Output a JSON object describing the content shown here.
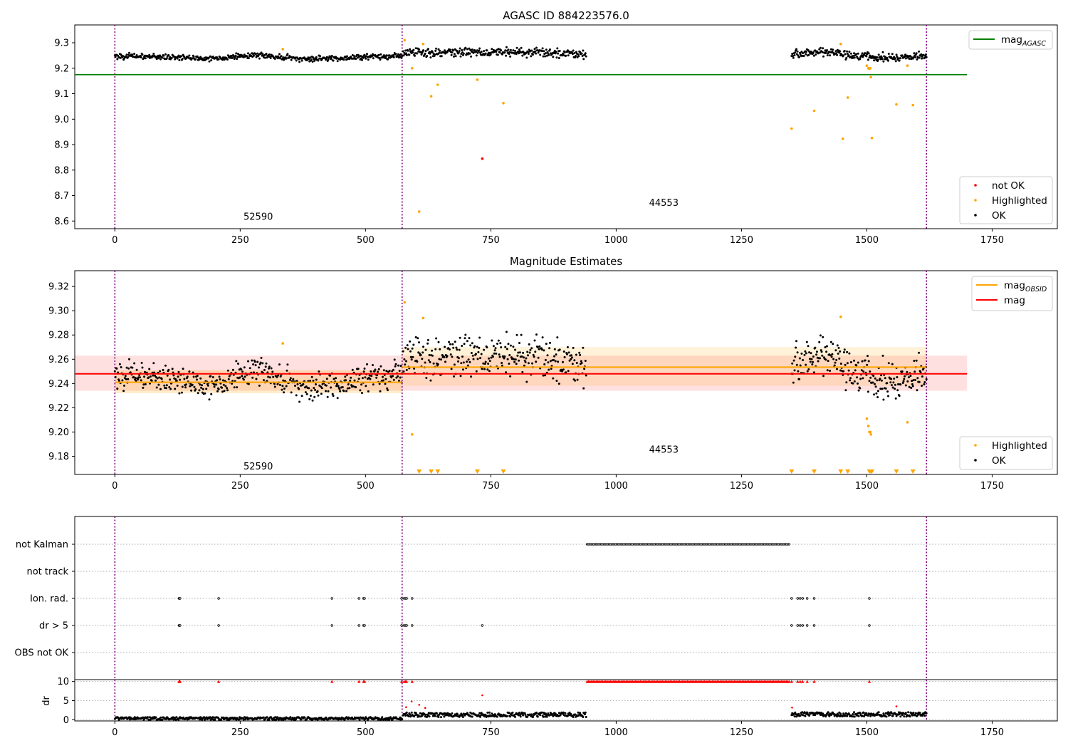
{
  "chart_data": [
    {
      "id": "agasc",
      "type": "scatter",
      "title": "AGASC ID 884223576.0",
      "xlabel": "",
      "ylabel": "",
      "xlim": [
        -80,
        1880
      ],
      "ylim": [
        8.57,
        9.37
      ],
      "xticks": [
        0,
        250,
        500,
        750,
        1000,
        1250,
        1500,
        1750
      ],
      "yticks": [
        8.6,
        8.7,
        8.8,
        8.9,
        9.0,
        9.1,
        9.2,
        9.3
      ],
      "ytick_labels": [
        "8.6",
        "8.7",
        "8.8",
        "8.9",
        "9.0",
        "9.1",
        "9.2",
        "9.3"
      ],
      "grid": false,
      "obsid_boundaries": [
        0,
        573,
        1619
      ],
      "obsid_labels": [
        {
          "text": "52590",
          "x": 286,
          "y": 8.605
        },
        {
          "text": "44553",
          "x": 1095,
          "y": 8.66
        }
      ],
      "reference_lines": [
        {
          "name": "mag_AGASC",
          "value": 9.175,
          "x": [
            -80,
            1700
          ],
          "color": "#008000"
        }
      ],
      "series": [
        {
          "name": "not OK",
          "color": "#ff0000",
          "points": [
            [
              733,
              8.845
            ]
          ]
        },
        {
          "name": "Highlighted",
          "color": "#ffa500",
          "points": [
            [
              335,
              9.275
            ],
            [
              578,
              9.31
            ],
            [
              593,
              9.2
            ],
            [
              607,
              8.637
            ],
            [
              615,
              9.295
            ],
            [
              631,
              9.09
            ],
            [
              644,
              9.135
            ],
            [
              723,
              9.155
            ],
            [
              775,
              9.063
            ],
            [
              1350,
              8.963
            ],
            [
              1395,
              9.033
            ],
            [
              1448,
              9.295
            ],
            [
              1452,
              8.923
            ],
            [
              1462,
              9.085
            ],
            [
              1500,
              9.21
            ],
            [
              1503,
              9.2
            ],
            [
              1505,
              9.198
            ],
            [
              1507,
              9.2
            ],
            [
              1508,
              9.165
            ],
            [
              1510,
              8.926
            ],
            [
              1559,
              9.058
            ],
            [
              1581,
              9.21
            ],
            [
              1592,
              9.055
            ]
          ]
        },
        {
          "name": "OK",
          "color": "#000000",
          "segments": [
            {
              "x0": 0,
              "x1": 573,
              "n": 460,
              "base": [
                9.248,
                9.245,
                9.238,
                9.252,
                9.235,
                9.243,
                9.25
              ],
              "spread": 0.016
            },
            {
              "x0": 575,
              "x1": 940,
              "n": 300,
              "base": [
                9.26,
                9.265,
                9.258
              ],
              "spread": 0.026
            },
            {
              "x0": 1350,
              "x1": 1619,
              "n": 230,
              "base": [
                9.255,
                9.265,
                9.248,
                9.24,
                9.248
              ],
              "spread": 0.024
            }
          ]
        }
      ],
      "legends": [
        {
          "position": "upper-right",
          "items": [
            {
              "name": "mag",
              "sub": "AGASC",
              "kind": "line",
              "color": "#008000"
            }
          ]
        },
        {
          "position": "lower-right",
          "items": [
            {
              "name": "not OK",
              "kind": "dot",
              "color": "#ff0000"
            },
            {
              "name": "Highlighted",
              "kind": "dot",
              "color": "#ffa500"
            },
            {
              "name": "OK",
              "kind": "dot",
              "color": "#000000"
            }
          ]
        }
      ]
    },
    {
      "id": "estimates",
      "type": "scatter",
      "title": "Magnitude Estimates",
      "xlabel": "",
      "ylabel": "",
      "xlim": [
        -80,
        1880
      ],
      "ylim": [
        9.165,
        9.333
      ],
      "xticks": [
        0,
        250,
        500,
        750,
        1000,
        1250,
        1500,
        1750
      ],
      "yticks": [
        9.18,
        9.2,
        9.22,
        9.24,
        9.26,
        9.28,
        9.3,
        9.32
      ],
      "ytick_labels": [
        "9.18",
        "9.20",
        "9.22",
        "9.24",
        "9.26",
        "9.28",
        "9.30",
        "9.32"
      ],
      "grid": false,
      "obsid_boundaries": [
        0,
        573,
        1619
      ],
      "obsid_labels": [
        {
          "text": "52590",
          "x": 286,
          "y": 9.169
        },
        {
          "text": "44553",
          "x": 1095,
          "y": 9.183
        }
      ],
      "bands": [
        {
          "x": [
            -80,
            1700
          ],
          "y": [
            9.234,
            9.263
          ],
          "color": "#ff0000",
          "opacity": 0.12
        },
        {
          "x": [
            0,
            573
          ],
          "y": [
            9.232,
            9.251
          ],
          "color": "#ffa500",
          "opacity": 0.2
        },
        {
          "x": [
            573,
            1619
          ],
          "y": [
            9.238,
            9.27
          ],
          "color": "#ffa500",
          "opacity": 0.15
        }
      ],
      "reference_lines": [
        {
          "name": "mag",
          "value": 9.248,
          "x": [
            -80,
            1700
          ],
          "color": "#ff0000"
        },
        {
          "name": "mag_OBSID",
          "value": 9.241,
          "x": [
            0,
            573
          ],
          "color": "#ffa500"
        },
        {
          "name": "mag_OBSID",
          "value": 9.2535,
          "x": [
            573,
            1619
          ],
          "color": "#ffa500"
        }
      ],
      "off_scale_markers": {
        "color": "#ffa500",
        "x": [
          607,
          631,
          644,
          723,
          775,
          1350,
          1395,
          1448,
          1462,
          1505,
          1508,
          1510,
          1559,
          1592
        ]
      },
      "series": [
        {
          "name": "Highlighted",
          "color": "#ffa500",
          "points": [
            [
              335,
              9.273
            ],
            [
              578,
              9.307
            ],
            [
              593,
              9.198
            ],
            [
              615,
              9.294
            ],
            [
              1448,
              9.295
            ],
            [
              1500,
              9.211
            ],
            [
              1503,
              9.205
            ],
            [
              1505,
              9.2
            ],
            [
              1507,
              9.2
            ],
            [
              1508,
              9.198
            ],
            [
              1581,
              9.208
            ]
          ]
        },
        {
          "name": "OK",
          "color": "#000000",
          "segments": [
            {
              "x0": 0,
              "x1": 573,
              "n": 460,
              "base": [
                9.248,
                9.245,
                9.238,
                9.252,
                9.235,
                9.243,
                9.25
              ],
              "spread": 0.016
            },
            {
              "x0": 575,
              "x1": 940,
              "n": 300,
              "base": [
                9.26,
                9.265,
                9.258
              ],
              "spread": 0.026
            },
            {
              "x0": 1350,
              "x1": 1619,
              "n": 230,
              "base": [
                9.255,
                9.265,
                9.248,
                9.24,
                9.248
              ],
              "spread": 0.024
            }
          ]
        }
      ],
      "legends": [
        {
          "position": "upper-right",
          "items": [
            {
              "name": "mag",
              "sub": "OBSID",
              "kind": "line",
              "color": "#ffa500"
            },
            {
              "name": "mag",
              "sub": "",
              "kind": "line",
              "color": "#ff0000"
            }
          ]
        },
        {
          "position": "lower-right",
          "items": [
            {
              "name": "Highlighted",
              "kind": "dot",
              "color": "#ffa500"
            },
            {
              "name": "OK",
              "kind": "dot",
              "color": "#000000"
            }
          ]
        }
      ]
    },
    {
      "id": "flags",
      "type": "scatter",
      "title": "",
      "xlabel": "",
      "ylabel": "",
      "xlim": [
        -80,
        1880
      ],
      "xticks": [],
      "categories": [
        "not Kalman",
        "not track",
        "Ion. rad.",
        "dr > 5",
        "OBS not OK"
      ],
      "grid": "y-dotted",
      "obsid_boundaries": [
        0,
        573,
        1619
      ],
      "flags": [
        {
          "category": "not Kalman",
          "ranges": [
            [
              942,
              1345
            ]
          ],
          "x": []
        },
        {
          "category": "not track",
          "ranges": [],
          "x": []
        },
        {
          "category": "Ion. rad.",
          "ranges": [],
          "x": [
            128,
            129,
            130,
            207,
            433,
            487,
            496,
            498,
            572,
            577,
            580,
            582,
            593,
            1350,
            1362,
            1367,
            1372,
            1381,
            1395,
            1505
          ]
        },
        {
          "category": "dr > 5",
          "ranges": [],
          "x": [
            128,
            129,
            130,
            207,
            433,
            487,
            496,
            498,
            572,
            577,
            580,
            582,
            593,
            733,
            1350,
            1362,
            1367,
            1372,
            1381,
            1395,
            1505
          ]
        },
        {
          "category": "OBS not OK",
          "ranges": [],
          "x": []
        }
      ]
    },
    {
      "id": "dr",
      "type": "scatter",
      "title": "",
      "xlabel": "",
      "ylabel": "dr",
      "xlim": [
        -80,
        1880
      ],
      "ylim": [
        -0.3,
        10.5
      ],
      "xticks": [
        0,
        250,
        500,
        750,
        1000,
        1250,
        1500,
        1750
      ],
      "yticks": [
        0,
        5,
        10
      ],
      "ytick_labels": [
        "0",
        "5",
        "10"
      ],
      "grid": "y-dotted",
      "obsid_boundaries": [
        0,
        573,
        1619
      ],
      "clipped": {
        "color": "#ff0000",
        "value": 10,
        "ranges": [
          [
            942,
            1345
          ]
        ],
        "x": [
          128,
          129,
          130,
          207,
          433,
          487,
          496,
          498,
          572,
          577,
          580,
          582,
          593,
          1350,
          1362,
          1367,
          1372,
          1381,
          1395,
          1505
        ]
      },
      "series": [
        {
          "name": "dr > 5",
          "color": "#ff0000",
          "points": [
            [
              581,
              3.3
            ],
            [
              592,
              4.8
            ],
            [
              607,
              3.9
            ],
            [
              619,
              3.1
            ],
            [
              733,
              6.4
            ],
            [
              1351,
              3.2
            ],
            [
              1559,
              3.5
            ]
          ]
        },
        {
          "name": "dr",
          "color": "#000000",
          "segments": [
            {
              "x0": 0,
              "x1": 573,
              "n": 420,
              "level": 0.35,
              "spread": 0.35
            },
            {
              "x0": 575,
              "x1": 940,
              "n": 300,
              "level": 1.3,
              "spread": 0.6
            },
            {
              "x0": 1350,
              "x1": 1619,
              "n": 230,
              "level": 1.4,
              "spread": 0.6
            }
          ]
        }
      ]
    }
  ]
}
